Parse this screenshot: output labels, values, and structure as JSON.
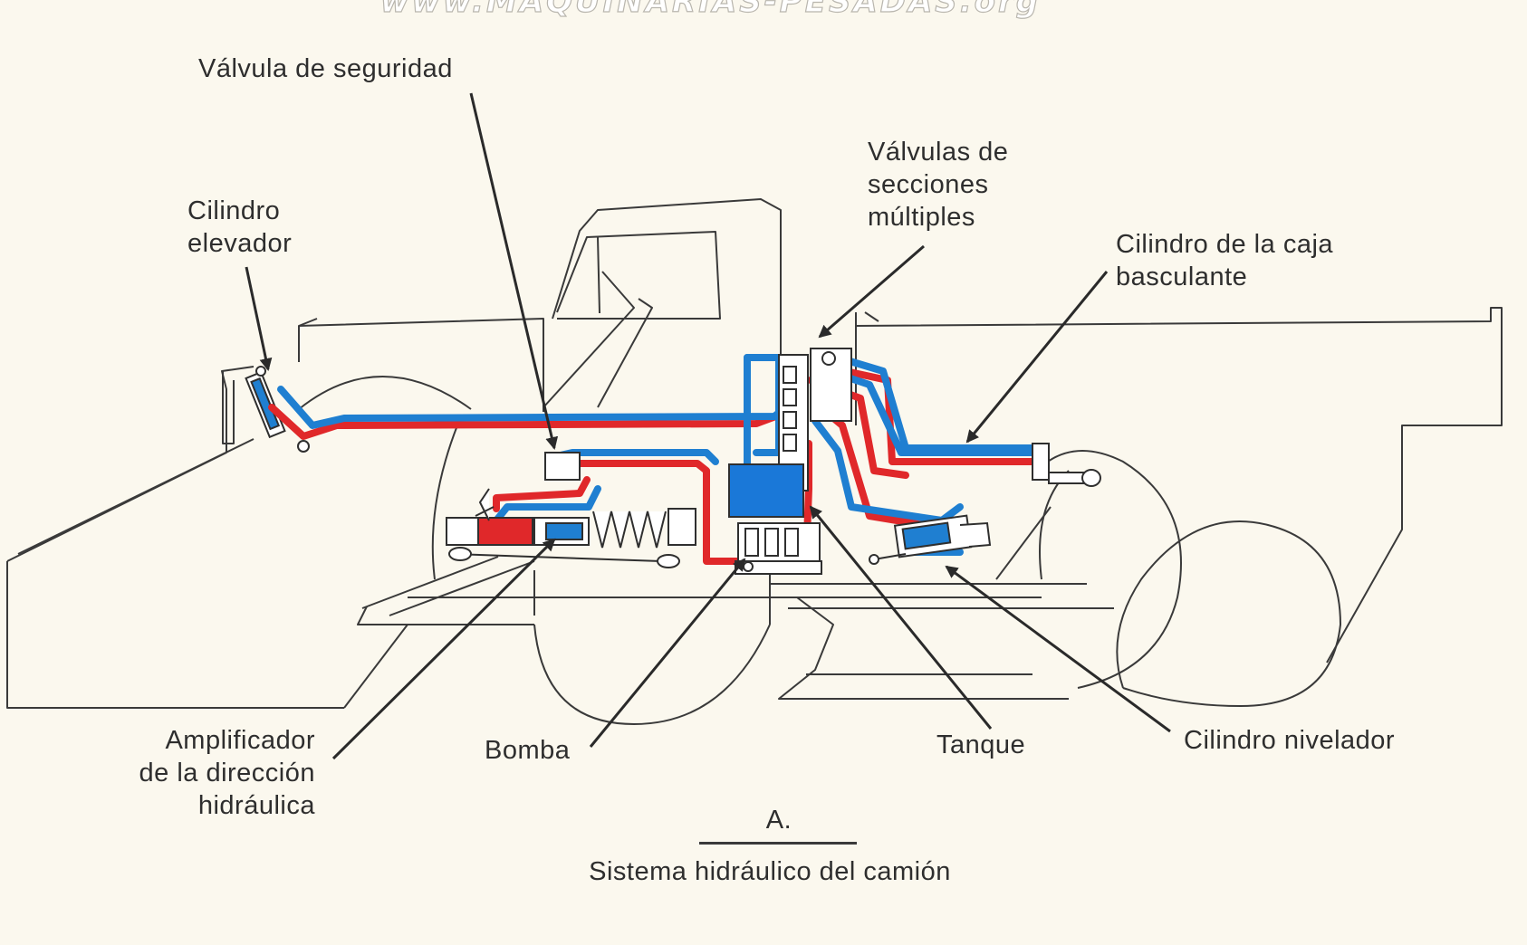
{
  "watermark": "www.MAQUINARIAS-PESADAS.org",
  "labels": {
    "valvula_seguridad": "Válvula de seguridad",
    "cilindro_elevador": [
      "Cilindro",
      "elevador"
    ],
    "valvulas_secciones": [
      "Válvulas de",
      "secciones",
      "múltiples"
    ],
    "cilindro_caja": [
      "Cilindro de la caja",
      "basculante"
    ],
    "amplificador": [
      "Amplificador",
      "de la dirección",
      "hidráulica"
    ],
    "bomba": "Bomba",
    "tanque": "Tanque",
    "cilindro_nivelador": "Cilindro nivelador"
  },
  "caption": {
    "letter": "A.",
    "title": "Sistema hidráulico del camión"
  },
  "colors": {
    "background": "#fbf8ee",
    "outline": "#2f2f2f",
    "pressure_line": "#e0282a",
    "return_line": "#1f7fd1",
    "block": "#1a78d8"
  }
}
